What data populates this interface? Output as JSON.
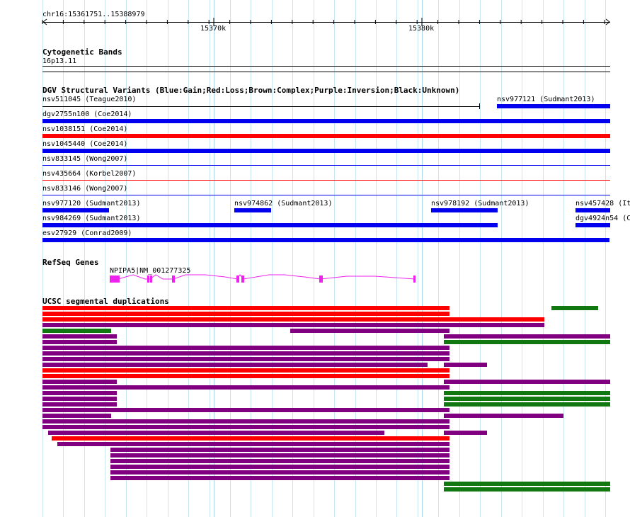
{
  "ruler": {
    "location": "chr16:15361751..15388979",
    "ticks": [
      "15370k",
      "15380k"
    ]
  },
  "tracks": {
    "cytoband": {
      "title": "Cytogenetic Bands",
      "band_label": "16p13.11"
    },
    "dgv": {
      "title": "DGV Structural Variants (Blue:Gain;Red:Loss;Brown:Complex;Purple:Inversion;Black:Unknown)",
      "features": [
        {
          "label": "nsv511045 (Teague2010)",
          "color": "#000000"
        },
        {
          "label": "nsv977121 (Sudmant2013)",
          "color": "#0000ee"
        },
        {
          "label": "dgv2755n100 (Coe2014)",
          "color": "#0000ee"
        },
        {
          "label": "nsv1038151 (Coe2014)",
          "color": "#ff0000"
        },
        {
          "label": "nsv1045440 (Coe2014)",
          "color": "#0000ee"
        },
        {
          "label": "nsv833145 (Wong2007)",
          "color": "#0000ee"
        },
        {
          "label": "nsv435664 (Korbel2007)",
          "color": "#ff0000"
        },
        {
          "label": "nsv833146 (Wong2007)",
          "color": "#0000ee"
        },
        {
          "label": "nsv977120 (Sudmant2013)",
          "color": "#0000ee"
        },
        {
          "label": "nsv974862 (Sudmant2013)",
          "color": "#0000ee"
        },
        {
          "label": "nsv978192 (Sudmant2013)",
          "color": "#0000ee"
        },
        {
          "label": "nsv457428 (It",
          "color": "#0000ee"
        },
        {
          "label": "nsv984269 (Sudmant2013)",
          "color": "#0000ee"
        },
        {
          "label": "dgv4924n54 (C",
          "color": "#0000ee"
        },
        {
          "label": "esv27929 (Conrad2009)",
          "color": "#0000ee"
        }
      ]
    },
    "refseq": {
      "title": "RefSeq Genes",
      "gene_label": "NPIPA5|NM_001277325",
      "color": "#ee22ee"
    },
    "segdups": {
      "title": "UCSC segmental duplications",
      "colors": {
        "red": "#ff0000",
        "purple": "#800080",
        "green": "#117711"
      }
    }
  }
}
